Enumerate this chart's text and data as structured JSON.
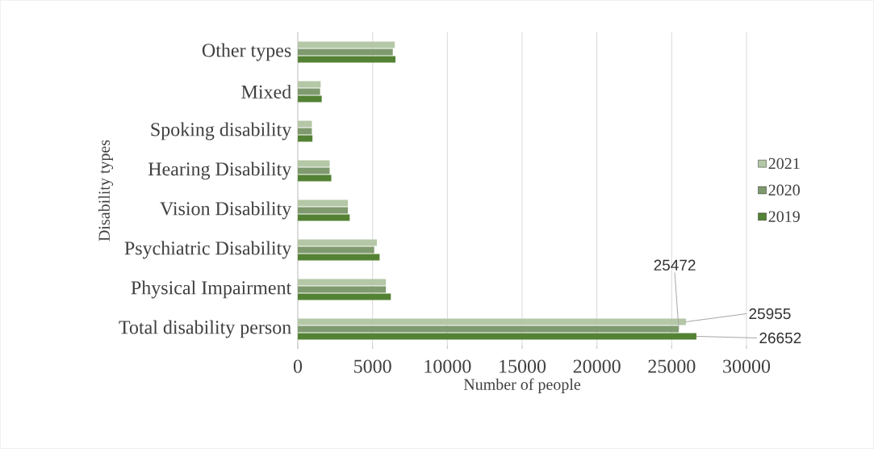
{
  "chart_data": {
    "type": "bar",
    "orientation": "horizontal",
    "xlabel": "Number of people",
    "ylabel": "Disability types",
    "categories": [
      "Other types",
      "Mixed",
      "Spoking disability",
      "Hearing Disability",
      "Vision Disability",
      "Psychiatric Disability",
      "Physical Impairment",
      "Total disability person"
    ],
    "series": [
      {
        "name": "2021",
        "color": "#b4c7a6",
        "values": [
          6480,
          1530,
          940,
          2130,
          3350,
          5290,
          5890,
          25955
        ],
        "value_labels": [
          null,
          null,
          null,
          null,
          null,
          null,
          null,
          "25955"
        ]
      },
      {
        "name": "2020",
        "color": "#7f9a6e",
        "values": [
          6350,
          1490,
          940,
          2130,
          3350,
          5110,
          5890,
          25472
        ],
        "value_labels": [
          null,
          null,
          null,
          null,
          null,
          null,
          null,
          "25472"
        ]
      },
      {
        "name": "2019",
        "color": "#548235",
        "values": [
          6530,
          1600,
          980,
          2240,
          3470,
          5470,
          6220,
          26652
        ],
        "value_labels": [
          null,
          null,
          null,
          null,
          null,
          null,
          null,
          "26652"
        ]
      }
    ],
    "xlim": [
      0,
      30000
    ],
    "xticks": [
      0,
      5000,
      10000,
      15000,
      20000,
      25000,
      30000
    ],
    "grid": "x",
    "legend": "right"
  }
}
